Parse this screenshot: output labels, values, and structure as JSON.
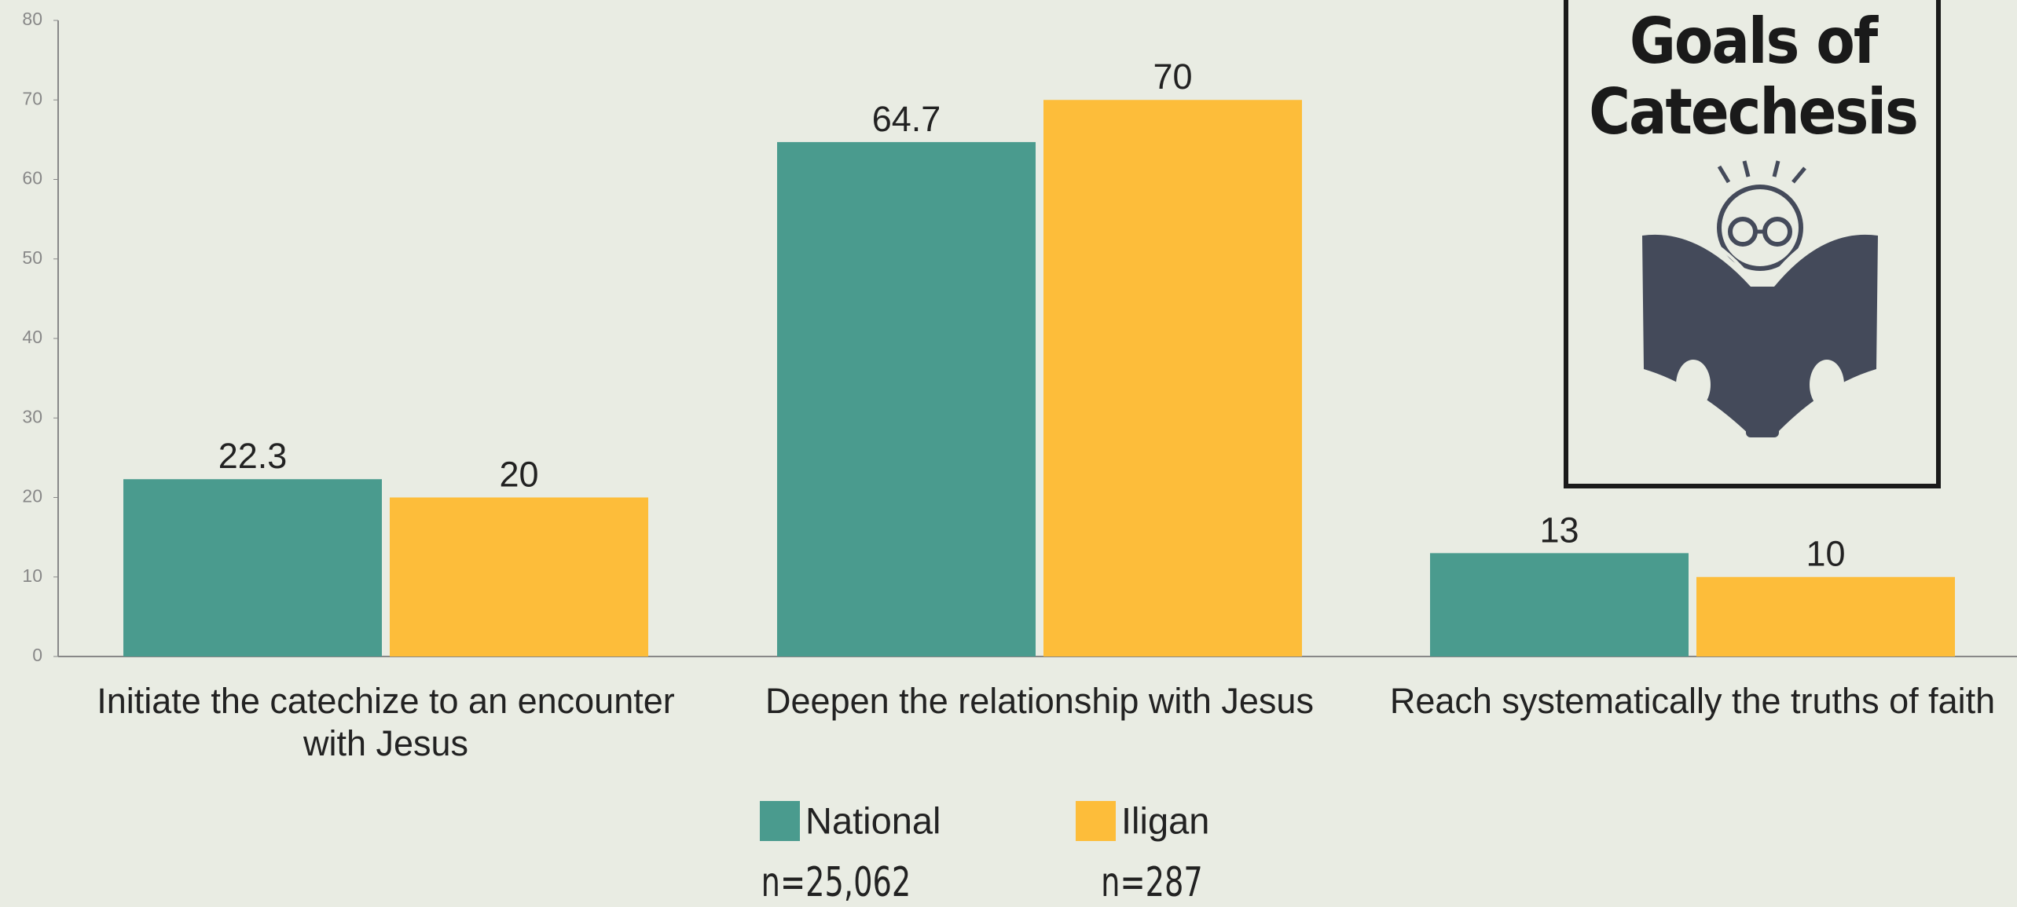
{
  "chart_data": {
    "type": "bar",
    "title": "Goals of Catechesis",
    "categories": [
      "Initiate the catechize to an encounter with Jesus",
      "Deepen the relationship with Jesus",
      "Reach systematically the truths of faith"
    ],
    "series": [
      {
        "name": "National",
        "color": "#4a9b8e",
        "values": [
          22.3,
          64.7,
          13
        ],
        "sample_size": "n=25,062"
      },
      {
        "name": "Iligan",
        "color": "#fdbd3a",
        "values": [
          20,
          70,
          10
        ],
        "sample_size": "n=287"
      }
    ],
    "ylim": [
      0,
      80
    ],
    "yticks": [
      0,
      10,
      20,
      30,
      40,
      50,
      60,
      70,
      80
    ],
    "grid": false
  }
}
